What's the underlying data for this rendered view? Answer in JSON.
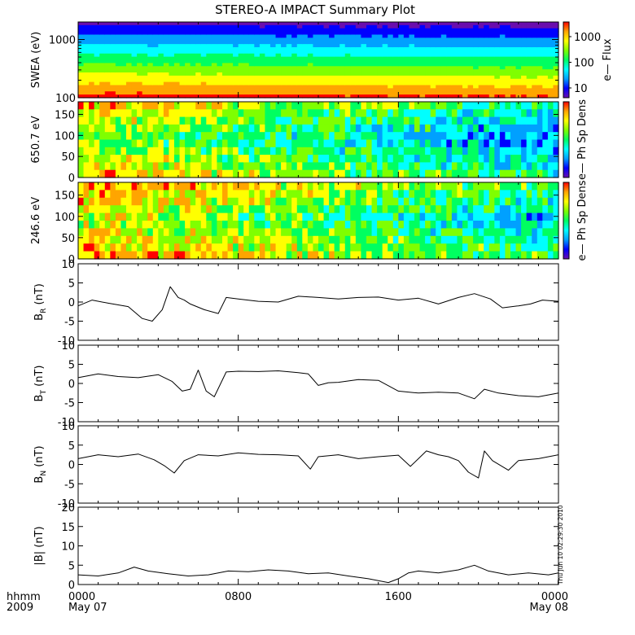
{
  "title": "STEREO-A IMPACT Summary Plot",
  "timestamp": "Thu Jun 10 02:29:30 2010",
  "x_axis": {
    "row1_labels": [
      "hhmm",
      "0000",
      "0800",
      "1600",
      "0000"
    ],
    "row2_labels": [
      "2009",
      "May 07",
      "",
      "",
      "May 08"
    ]
  },
  "colors": {
    "colormap": [
      "#6a0dad",
      "#0000ff",
      "#00a0ff",
      "#00ffff",
      "#00ff60",
      "#7fff00",
      "#ffff00",
      "#ffa500",
      "#ff0000"
    ]
  },
  "chart_data": [
    {
      "type": "heatmap",
      "ylabel": "SWEA (eV)",
      "yscale": "log",
      "ylim": [
        100,
        2000
      ],
      "yticks": [
        "1000",
        "100"
      ],
      "colorbar": {
        "label": "e— Flux",
        "ticks": [
          "1000",
          "100",
          "10"
        ],
        "scale": "log"
      },
      "description_rows": [
        {
          "energy": 1500,
          "level": 0.05
        },
        {
          "energy": 1000,
          "level": 0.25
        },
        {
          "energy": 600,
          "level": 0.45
        },
        {
          "energy": 350,
          "level": 0.6
        },
        {
          "energy": 200,
          "level": 0.78
        },
        {
          "energy": 120,
          "level": 0.92
        }
      ]
    },
    {
      "type": "heatmap",
      "ylabel": "650.7 eV",
      "ylim": [
        0,
        180
      ],
      "yticks": [
        "150",
        "100",
        "50",
        "0"
      ],
      "colorbar": {
        "label": "e— Ph Sp Dens"
      }
    },
    {
      "type": "heatmap",
      "ylabel": "246.6 eV",
      "ylim": [
        0,
        180
      ],
      "yticks": [
        "150",
        "100",
        "50",
        "0"
      ],
      "colorbar": {
        "label": "e— Ph Sp Dens"
      }
    },
    {
      "type": "line",
      "ylabel": "B",
      "ylabel_sub": "R",
      "ylabel_unit": " (nT)",
      "ylim": [
        -10,
        10
      ],
      "yticks": [
        "10",
        "5",
        "0",
        "-5",
        "-10"
      ],
      "x_hours": [
        0,
        0.7,
        1.5,
        2.5,
        3.2,
        3.7,
        4.2,
        4.6,
        5.0,
        5.3,
        5.6,
        6.3,
        7.0,
        7.4,
        8.0,
        9.0,
        10.0,
        11.0,
        12.0,
        13.0,
        14.0,
        15.0,
        16.0,
        17.0,
        18.0,
        19.0,
        19.8,
        20.6,
        21.2,
        22.0,
        22.6,
        23.2,
        24.0
      ],
      "values": [
        -1,
        0.5,
        -0.3,
        -1.2,
        -4.3,
        -5,
        -2,
        4,
        1.2,
        0.5,
        -0.5,
        -2,
        -3,
        1.2,
        0.8,
        0.2,
        0,
        1.5,
        1.2,
        0.8,
        1.2,
        1.3,
        0.5,
        1.0,
        -0.5,
        1.2,
        2.2,
        0.8,
        -1.5,
        -1,
        -0.5,
        0.5,
        0.2
      ]
    },
    {
      "type": "line",
      "ylabel": "B",
      "ylabel_sub": "T",
      "ylabel_unit": " (nT)",
      "ylim": [
        -10,
        10
      ],
      "yticks": [
        "10",
        "5",
        "0",
        "-5",
        "-10"
      ],
      "x_hours": [
        0,
        1,
        2,
        3,
        4,
        4.7,
        5.2,
        5.6,
        6.0,
        6.4,
        6.8,
        7.4,
        8.0,
        9.0,
        10.0,
        11.0,
        11.5,
        12.0,
        12.5,
        13.0,
        14.0,
        15.0,
        16.0,
        17.0,
        18.0,
        19.0,
        19.8,
        20.3,
        21.0,
        22.0,
        23.0,
        24.0
      ],
      "values": [
        1.5,
        2.5,
        1.8,
        1.5,
        2.3,
        0.5,
        -2,
        -1.5,
        3.5,
        -2,
        -3.5,
        3,
        3.2,
        3.1,
        3.3,
        2.8,
        2.5,
        -0.5,
        0.2,
        0.3,
        1.0,
        0.8,
        -2,
        -2.5,
        -2.3,
        -2.5,
        -4,
        -1.5,
        -2.5,
        -3.2,
        -3.5,
        -2.5
      ]
    },
    {
      "type": "line",
      "ylabel": "B",
      "ylabel_sub": "N",
      "ylabel_unit": " (nT)",
      "ylim": [
        -10,
        10
      ],
      "yticks": [
        "10",
        "5",
        "0",
        "-5",
        "-10"
      ],
      "x_hours": [
        0,
        1,
        2,
        3,
        3.8,
        4.3,
        4.8,
        5.3,
        6.0,
        7.0,
        8.0,
        9.0,
        10.0,
        11.0,
        11.6,
        12.0,
        13.0,
        14.0,
        15.0,
        16.0,
        16.6,
        17.4,
        18.0,
        18.5,
        19.0,
        19.5,
        20.0,
        20.3,
        20.7,
        21.5,
        22.0,
        23.0,
        24.0
      ],
      "values": [
        1.5,
        2.5,
        2.0,
        2.7,
        1.2,
        -0.3,
        -2.2,
        1.0,
        2.5,
        2.2,
        3.0,
        2.6,
        2.5,
        2.2,
        -1.2,
        2.0,
        2.5,
        1.5,
        2.0,
        2.4,
        -0.5,
        3.5,
        2.5,
        2.0,
        1.0,
        -2.0,
        -3.5,
        3.5,
        1.0,
        -1.5,
        1.0,
        1.5,
        2.5
      ]
    },
    {
      "type": "line",
      "ylabel": "|B| (nT)",
      "ylim": [
        0,
        20
      ],
      "yticks": [
        "20",
        "15",
        "10",
        "5",
        "0"
      ],
      "x_hours": [
        0,
        1,
        2,
        2.8,
        3.5,
        4.5,
        5.5,
        6.5,
        7.5,
        8.5,
        9.5,
        10.5,
        11.5,
        12.5,
        13.5,
        14.5,
        15.5,
        16.0,
        16.5,
        17.0,
        18.0,
        19.0,
        19.8,
        20.5,
        21.5,
        22.5,
        23.5,
        24.0
      ],
      "values": [
        2.5,
        2.2,
        3.0,
        4.5,
        3.5,
        2.8,
        2.2,
        2.5,
        3.5,
        3.3,
        3.8,
        3.5,
        2.8,
        3.0,
        2.2,
        1.5,
        0.5,
        1.5,
        3.0,
        3.5,
        3.0,
        3.8,
        5.0,
        3.5,
        2.5,
        3.0,
        2.5,
        3.0
      ]
    }
  ]
}
